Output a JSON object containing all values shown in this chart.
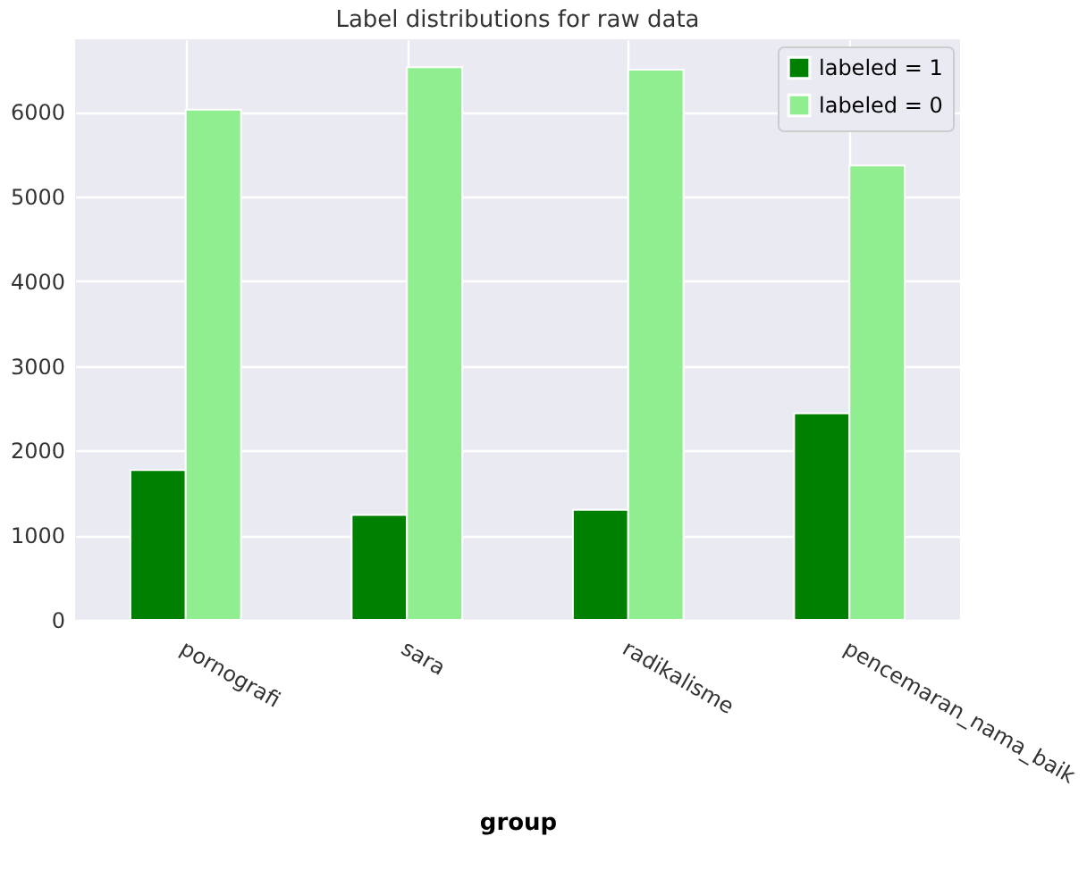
{
  "chart_data": {
    "type": "bar",
    "title": "Label distributions for raw data",
    "xlabel": "group",
    "categories": [
      "pornografi",
      "sara",
      "radikalisme",
      "pencemaran_nama_baik"
    ],
    "series": [
      {
        "name": "labeled = 1",
        "color": "#008000",
        "values": [
          1770,
          1240,
          1300,
          2440
        ]
      },
      {
        "name": "labeled = 0",
        "color": "#90ee90",
        "values": [
          6030,
          6530,
          6500,
          5370
        ]
      }
    ],
    "ylim": [
      0,
      6860
    ],
    "yticks": [
      0,
      1000,
      2000,
      3000,
      4000,
      5000,
      6000
    ],
    "grid": true,
    "legend": "top right"
  }
}
